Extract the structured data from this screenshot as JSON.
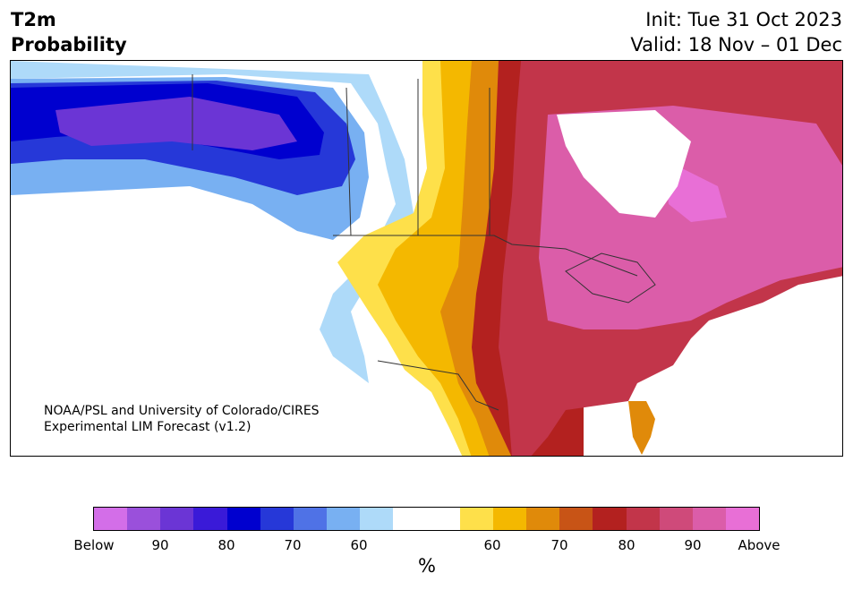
{
  "title": {
    "line1": "T2m",
    "line2": "Probability"
  },
  "header": {
    "init": "Init: Tue 31 Oct 2023",
    "valid": "Valid: 18 Nov – 01 Dec"
  },
  "credit": {
    "line1": "NOAA/PSL and University of Colorado/CIRES",
    "line2": "Experimental LIM Forecast (v1.2)"
  },
  "colorbar": {
    "colors": [
      "#d36ee8",
      "#9a50db",
      "#6b35d5",
      "#3a1ad8",
      "#0000cf",
      "#2638d8",
      "#4f72e6",
      "#78b0f2",
      "#aedaf9",
      "#ffffff",
      "#ffffff",
      "#fee04a",
      "#f4b800",
      "#e08a0a",
      "#c85416",
      "#b3211f",
      "#c2354a",
      "#cf4a7a",
      "#db5da9",
      "#e86fd6"
    ],
    "tick_labels": [
      "Below",
      "90",
      "80",
      "70",
      "60",
      "60",
      "70",
      "80",
      "90",
      "Above"
    ],
    "unit": "%"
  },
  "legend_classes": {
    "below": [
      "Below",
      "90",
      "80",
      "70",
      "60"
    ],
    "above": [
      "60",
      "70",
      "80",
      "90",
      "Above"
    ]
  }
}
